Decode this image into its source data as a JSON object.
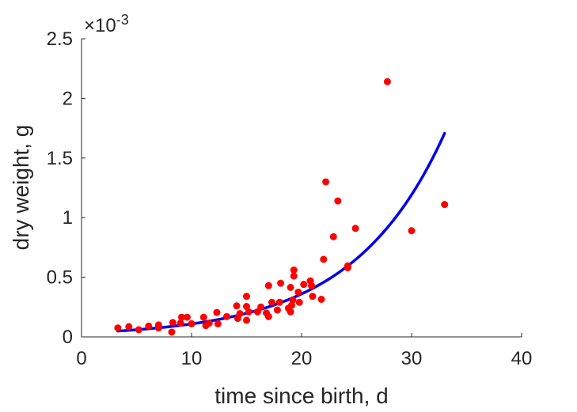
{
  "chart_data": {
    "type": "scatter",
    "title": "",
    "xlabel": "time since birth, d",
    "ylabel": "dry weight, g",
    "xlim": [
      0,
      40
    ],
    "ylim": [
      0,
      0.0025
    ],
    "x_ticks": [
      0,
      10,
      20,
      30,
      40
    ],
    "x_tick_labels": [
      "0",
      "10",
      "20",
      "30",
      "40"
    ],
    "y_ticks": [
      0,
      0.0005,
      0.001,
      0.0015,
      0.002,
      0.0025
    ],
    "y_tick_labels": [
      "0",
      "0.5",
      "1",
      "1.5",
      "2",
      "2.5"
    ],
    "y_exponent": {
      "base": "×10",
      "power": "-3"
    },
    "grid": false,
    "colors": {
      "points": "#ff0000",
      "fit": "#0000ee",
      "axes": "#262626"
    },
    "series": [
      {
        "kind": "scatter",
        "points": [
          [
            3.3,
            7.5e-05
          ],
          [
            4.3,
            8.5e-05
          ],
          [
            5.2,
            6e-05
          ],
          [
            6.1,
            9e-05
          ],
          [
            7.0,
            0.0001
          ],
          [
            7.0,
            7.5e-05
          ],
          [
            8.2,
            4e-05
          ],
          [
            8.3,
            0.00012
          ],
          [
            9.0,
            0.000115
          ],
          [
            9.1,
            0.000165
          ],
          [
            9.6,
            0.000165
          ],
          [
            10.0,
            0.00011
          ],
          [
            11.1,
            0.000165
          ],
          [
            11.3,
            9.5e-05
          ],
          [
            11.6,
            0.000115
          ],
          [
            12.3,
            0.000205
          ],
          [
            12.4,
            0.00011
          ],
          [
            13.2,
            0.00017
          ],
          [
            14.1,
            0.00026
          ],
          [
            14.2,
            0.000155
          ],
          [
            14.4,
            0.000195
          ],
          [
            15.0,
            0.00034
          ],
          [
            15.0,
            0.000255
          ],
          [
            15.0,
            0.00014
          ],
          [
            15.2,
            0.00021
          ],
          [
            16.0,
            0.00021
          ],
          [
            16.3,
            0.00025
          ],
          [
            16.8,
            0.0002
          ],
          [
            17.0,
            0.00017
          ],
          [
            17.0,
            0.00043
          ],
          [
            17.3,
            0.00029
          ],
          [
            17.8,
            0.000225
          ],
          [
            18.0,
            0.00029
          ],
          [
            18.1,
            0.00045
          ],
          [
            18.8,
            0.00024
          ],
          [
            19.0,
            0.000415
          ],
          [
            19.0,
            0.00021
          ],
          [
            19.1,
            0.000265
          ],
          [
            19.2,
            0.00031
          ],
          [
            19.3,
            0.00051
          ],
          [
            19.3,
            0.00056
          ],
          [
            19.7,
            0.000375
          ],
          [
            19.8,
            0.00029
          ],
          [
            20.2,
            0.00044
          ],
          [
            20.8,
            0.00047
          ],
          [
            20.9,
            0.00043
          ],
          [
            21.0,
            0.00034
          ],
          [
            21.8,
            0.000315
          ],
          [
            22.0,
            0.00065
          ],
          [
            22.2,
            0.0013
          ],
          [
            22.9,
            0.00084
          ],
          [
            23.3,
            0.00114
          ],
          [
            24.2,
            0.00058
          ],
          [
            24.2,
            0.000595
          ],
          [
            24.9,
            0.00091
          ],
          [
            27.8,
            0.00214
          ],
          [
            30.0,
            0.00089
          ],
          [
            33.0,
            0.00111
          ]
        ]
      },
      {
        "kind": "line",
        "x_start": 3.3,
        "x_end": 33.0,
        "model": "exponential",
        "a": 3.286e-05,
        "b": 0.1197
      }
    ]
  }
}
